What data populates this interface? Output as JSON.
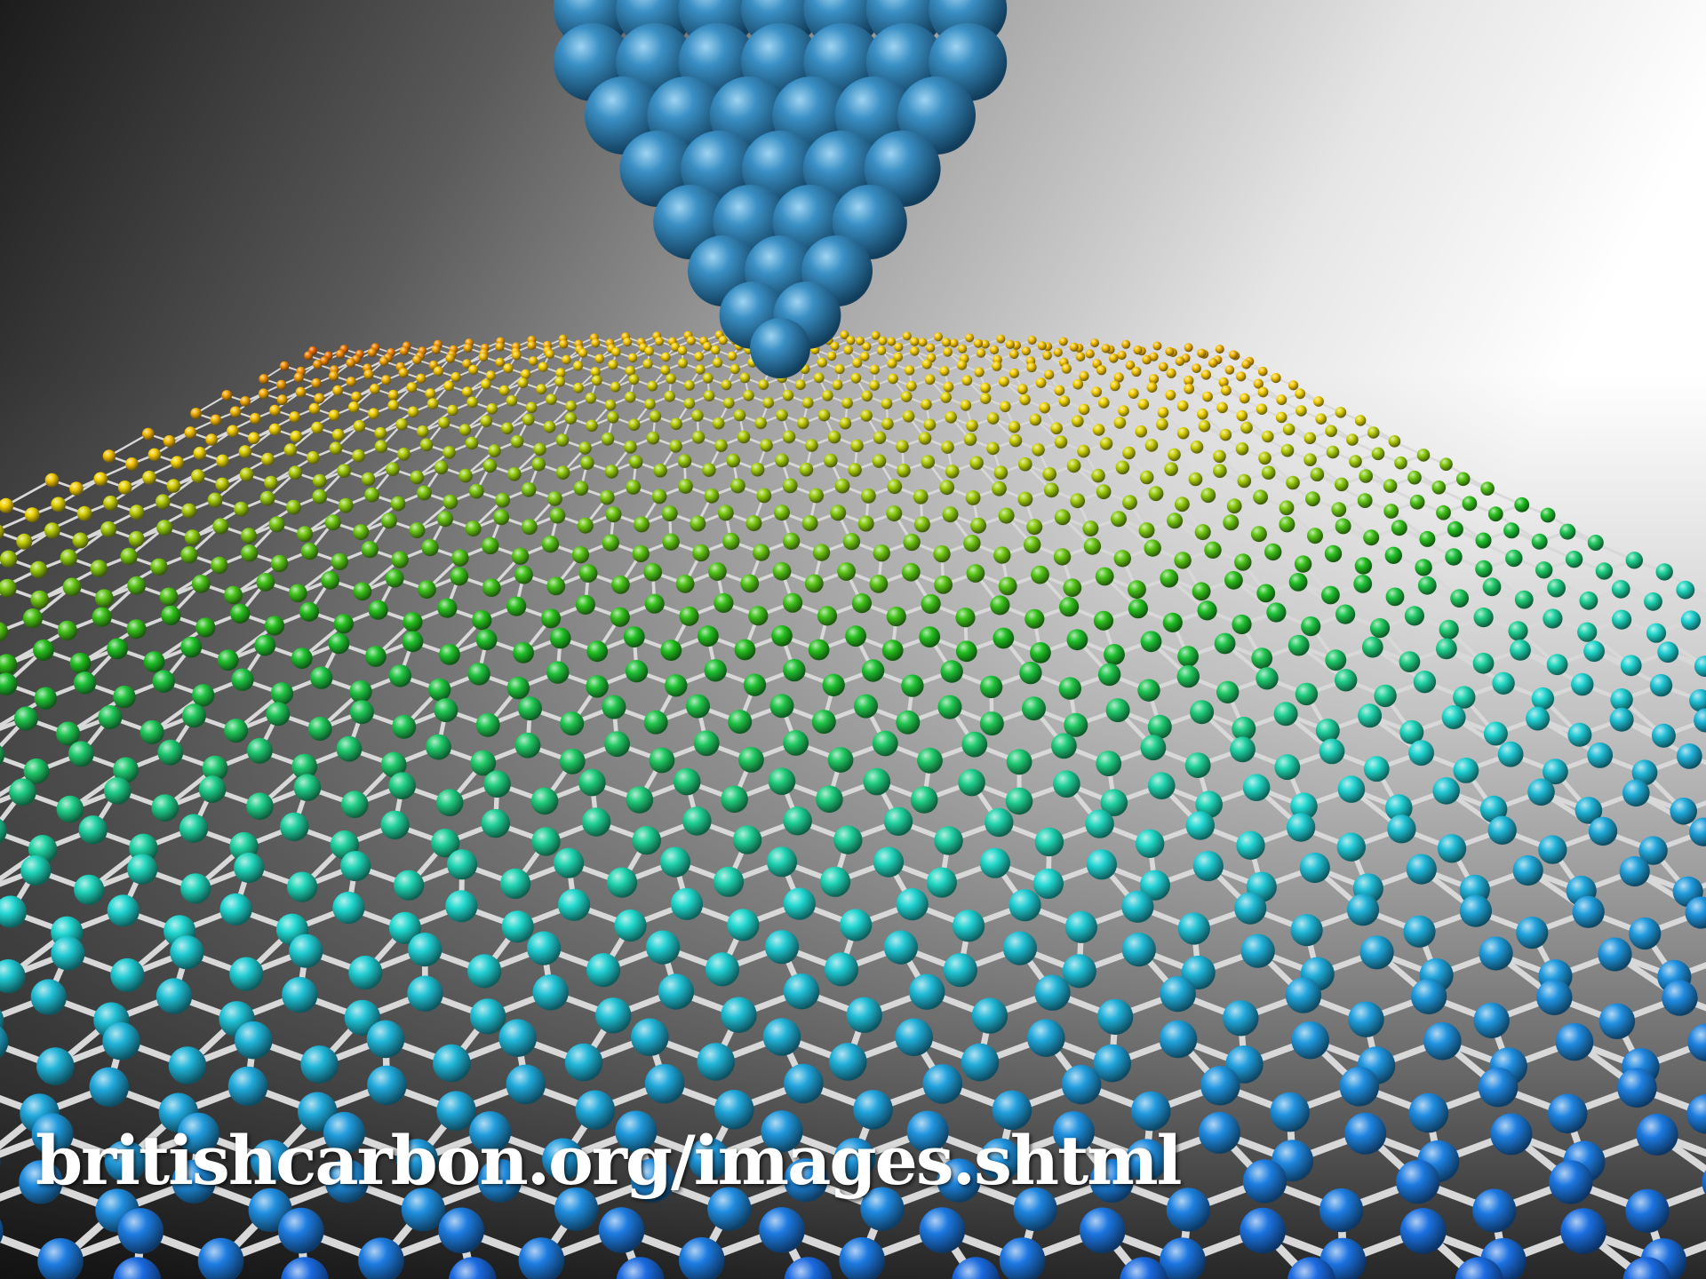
{
  "watermark": {
    "text": "britishcarbon.org/images.shtml"
  },
  "scene": {
    "subject": "graphene sheet with probe tip",
    "colors": {
      "tip": "#3a8fc4",
      "bond": "#d8d8d8",
      "colormap": [
        "#e81a00",
        "#f26a00",
        "#f5d400",
        "#20c020",
        "#20d8d0",
        "#2090e0",
        "#1030e0"
      ]
    }
  }
}
